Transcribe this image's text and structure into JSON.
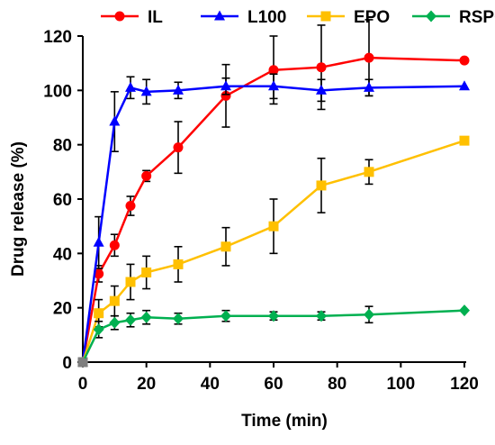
{
  "chart_data": {
    "type": "line",
    "title": "",
    "xlabel": "Time (min)",
    "ylabel": "Drug release (%)",
    "xlim": [
      0,
      120
    ],
    "ylim": [
      0,
      120
    ],
    "x_ticks": [
      0,
      20,
      40,
      60,
      80,
      100,
      120
    ],
    "y_ticks": [
      0,
      20,
      40,
      60,
      80,
      100,
      120
    ],
    "grid": false,
    "legend_position": "top",
    "series": [
      {
        "name": "IL",
        "color": "#ff0000",
        "marker": "circle",
        "points": [
          {
            "x": 0,
            "y": 0,
            "err": 0
          },
          {
            "x": 5,
            "y": 32.5,
            "err": 3
          },
          {
            "x": 10,
            "y": 43,
            "err": 4
          },
          {
            "x": 15,
            "y": 57.5,
            "err": 3.5
          },
          {
            "x": 20,
            "y": 68.5,
            "err": 2
          },
          {
            "x": 30,
            "y": 79,
            "err": 9.5
          },
          {
            "x": 45,
            "y": 98,
            "err": 11.5
          },
          {
            "x": 60,
            "y": 107.5,
            "err": 12.5
          },
          {
            "x": 75,
            "y": 108.5,
            "err": 15.5
          },
          {
            "x": 90,
            "y": 112,
            "err": 14
          },
          {
            "x": 120,
            "y": 111,
            "err": 0
          }
        ]
      },
      {
        "name": "L100",
        "color": "#0000ff",
        "marker": "triangle",
        "points": [
          {
            "x": 0,
            "y": 0,
            "err": 0
          },
          {
            "x": 5,
            "y": 44,
            "err": 9.5
          },
          {
            "x": 10,
            "y": 88.5,
            "err": 11
          },
          {
            "x": 15,
            "y": 101,
            "err": 4
          },
          {
            "x": 20,
            "y": 99.5,
            "err": 4.5
          },
          {
            "x": 30,
            "y": 100,
            "err": 3
          },
          {
            "x": 45,
            "y": 101.5,
            "err": 3
          },
          {
            "x": 60,
            "y": 101.5,
            "err": 4.5
          },
          {
            "x": 75,
            "y": 100,
            "err": 4
          },
          {
            "x": 90,
            "y": 101,
            "err": 3
          },
          {
            "x": 120,
            "y": 101.5,
            "err": 0
          }
        ]
      },
      {
        "name": "EPO",
        "color": "#ffc000",
        "marker": "square",
        "points": [
          {
            "x": 0,
            "y": 0,
            "err": 0
          },
          {
            "x": 5,
            "y": 18,
            "err": 5
          },
          {
            "x": 10,
            "y": 22.5,
            "err": 5.5
          },
          {
            "x": 15,
            "y": 29.5,
            "err": 6.5
          },
          {
            "x": 20,
            "y": 33,
            "err": 6
          },
          {
            "x": 30,
            "y": 36,
            "err": 6.5
          },
          {
            "x": 45,
            "y": 42.5,
            "err": 7
          },
          {
            "x": 60,
            "y": 50,
            "err": 10
          },
          {
            "x": 75,
            "y": 65,
            "err": 10
          },
          {
            "x": 90,
            "y": 70,
            "err": 4.5
          },
          {
            "x": 120,
            "y": 81.5,
            "err": 0
          }
        ]
      },
      {
        "name": "RSPO",
        "color": "#00b050",
        "marker": "diamond",
        "points": [
          {
            "x": 0,
            "y": 0,
            "err": 0
          },
          {
            "x": 5,
            "y": 12,
            "err": 3
          },
          {
            "x": 10,
            "y": 14.5,
            "err": 2.5
          },
          {
            "x": 15,
            "y": 15.5,
            "err": 2.5
          },
          {
            "x": 20,
            "y": 16.5,
            "err": 2.5
          },
          {
            "x": 30,
            "y": 16,
            "err": 2
          },
          {
            "x": 45,
            "y": 17,
            "err": 2
          },
          {
            "x": 60,
            "y": 17,
            "err": 1.5
          },
          {
            "x": 75,
            "y": 17,
            "err": 1.5
          },
          {
            "x": 90,
            "y": 17.5,
            "err": 3
          },
          {
            "x": 120,
            "y": 19,
            "err": 0
          }
        ]
      }
    ]
  }
}
